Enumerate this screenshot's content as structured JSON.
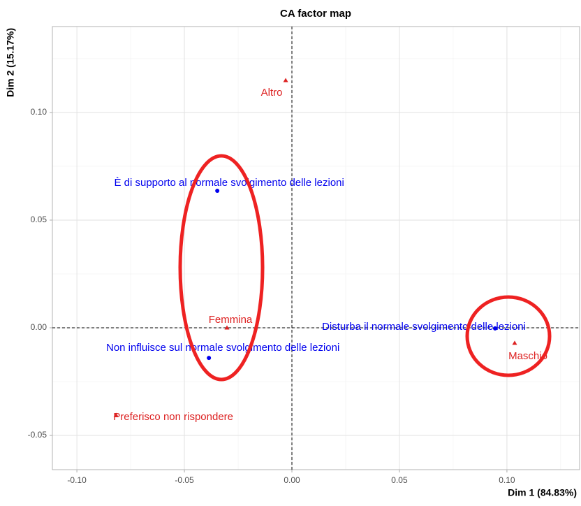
{
  "chart_data": {
    "type": "scatter",
    "title": "CA factor map",
    "xlabel": "Dim 1 (84.83%)",
    "ylabel": "Dim 2 (15.17%)",
    "xlim": [
      -0.1114,
      0.1338
    ],
    "ylim": [
      -0.0659,
      0.1399
    ],
    "xticks": [
      {
        "value": -0.1,
        "label": "-0.10"
      },
      {
        "value": -0.05,
        "label": "-0.05"
      },
      {
        "value": 0,
        "label": "0.00"
      },
      {
        "value": 0.05,
        "label": "0.05"
      },
      {
        "value": 0.1,
        "label": "0.10"
      }
    ],
    "yticks": [
      {
        "value": -0.05,
        "label": "-0.05"
      },
      {
        "value": 0,
        "label": "0.00"
      },
      {
        "value": 0.05,
        "label": "0.05"
      },
      {
        "value": 0.1,
        "label": "0.10"
      }
    ],
    "grid": true,
    "reference_lines": {
      "x": 0,
      "y": 0
    },
    "series": [
      {
        "color": "#0000ee",
        "marker": "circle",
        "labels": [
          "È di supporto al normale svolgimento delle lezioni",
          "Disturba il normale svolgimento delle lezioni",
          "Non influisce sul normale svolgimento delle lezioni"
        ],
        "x": [
          -0.0347,
          0.0945,
          -0.0386
        ],
        "y": [
          0.0636,
          -0.0003,
          -0.014
        ]
      },
      {
        "color": "#dd2222",
        "marker": "triangle",
        "labels": [
          "Altro",
          "Femmina",
          "Maschio",
          "Preferisco non rispondere"
        ],
        "x": [
          -0.0029,
          -0.0302,
          0.1036,
          -0.0818
        ],
        "y": [
          0.1149,
          0,
          -0.0071,
          -0.0406
        ]
      }
    ]
  }
}
